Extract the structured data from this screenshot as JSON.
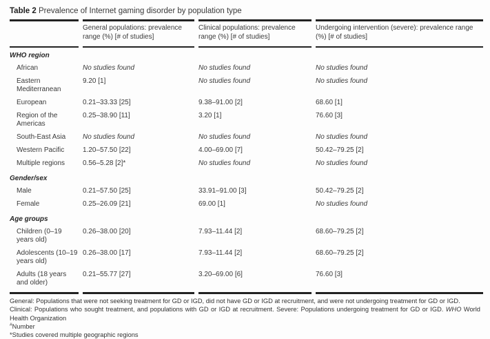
{
  "table": {
    "title_label": "Table 2",
    "title_text": "Prevalence of Internet gaming disorder by population type",
    "no_studies_text": "No studies found",
    "columns": [
      "",
      "General populations: prevalence range (%) [# of studies]",
      "Clinical populations: prevalence range (%) [# of studies]",
      "Undergoing intervention (severe): prevalence range (%) [# of studies]"
    ],
    "sections": [
      {
        "label": "WHO region",
        "rows": [
          {
            "label": "African",
            "cells": [
              "No studies found",
              "No studies found",
              "No studies found"
            ]
          },
          {
            "label": "Eastern Mediterranean",
            "cells": [
              "9.20 [1]",
              "No studies found",
              "No studies found"
            ]
          },
          {
            "label": "European",
            "cells": [
              "0.21–33.33 [25]",
              "9.38–91.00 [2]",
              "68.60 [1]"
            ]
          },
          {
            "label": "Region of the Americas",
            "cells": [
              "0.25–38.90 [11]",
              "3.20 [1]",
              "76.60 [3]"
            ]
          },
          {
            "label": "South-East Asia",
            "cells": [
              "No studies found",
              "No studies found",
              "No studies found"
            ]
          },
          {
            "label": "Western Pacific",
            "cells": [
              "1.20–57.50 [22]",
              "4.00–69.00 [7]",
              "50.42–79.25 [2]"
            ]
          },
          {
            "label": "Multiple regions",
            "cells": [
              "0.56–5.28 [2]*",
              "No studies found",
              "No studies found"
            ]
          }
        ]
      },
      {
        "label": "Gender/sex",
        "rows": [
          {
            "label": "Male",
            "cells": [
              "0.21–57.50 [25]",
              "33.91–91.00 [3]",
              "50.42–79.25 [2]"
            ]
          },
          {
            "label": "Female",
            "cells": [
              "0.25–26.09 [21]",
              "69.00 [1]",
              "No studies found"
            ]
          }
        ]
      },
      {
        "label": "Age groups",
        "rows": [
          {
            "label": "Children (0–19 years old)",
            "cells": [
              "0.26–38.00 [20]",
              "7.93–11.44 [2]",
              "68.60–79.25 [2]"
            ]
          },
          {
            "label": "Adolescents (10–19 years old)",
            "cells": [
              "0.26–38.00 [17]",
              "7.93–11.44 [2]",
              "68.60–79.25 [2]"
            ]
          },
          {
            "label": "Adults (18 years and older)",
            "cells": [
              "0.21–55.77 [27]",
              "3.20–69.00 [6]",
              "76.60 [3]"
            ]
          }
        ]
      }
    ]
  },
  "footnotes": {
    "general": "General: Populations that were not seeking treatment for GD or IGD, did not have GD or IGD at recruitment, and were not undergoing treatment for GD or IGD.",
    "clinical_pre": "Clinical: Populations who sought treatment, and populations with GD or IGD at recruitment. Severe: Populations undergoing treatment for GD or IGD. ",
    "who_abbr": "WHO",
    "who_rest": " World Health Organization",
    "number_symbol": "#",
    "number_text": "Number",
    "asterisk_note": "*Studies covered multiple geographic regions"
  }
}
